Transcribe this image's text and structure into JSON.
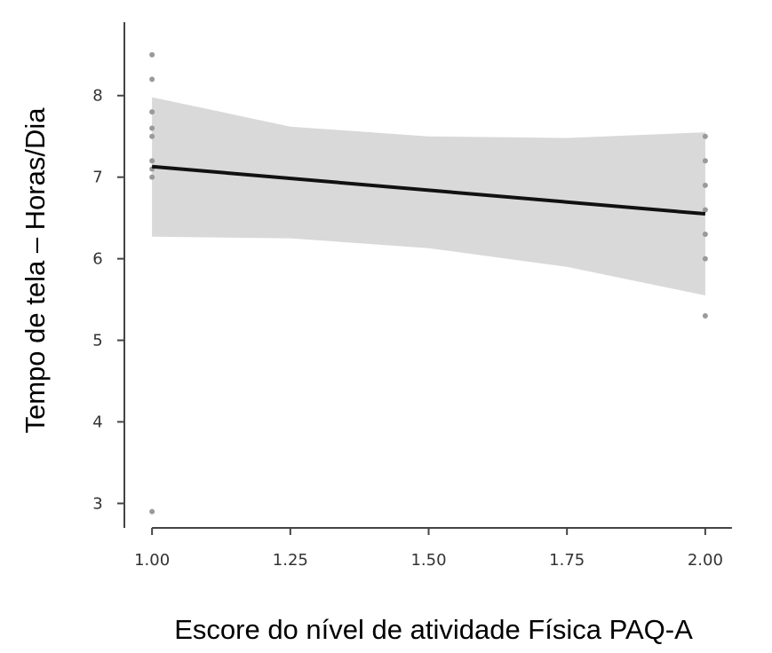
{
  "chart_data": {
    "type": "scatter",
    "title": "",
    "xlabel": "Escore do nível de atividade Física PAQ-A",
    "ylabel": "Tempo de tela – Horas/Dia",
    "xlim": [
      0.95,
      2.05
    ],
    "ylim": [
      2.7,
      8.9
    ],
    "x_ticks": [
      1.0,
      1.25,
      1.5,
      1.75,
      2.0
    ],
    "x_tick_labels": [
      "1.00",
      "1.25",
      "1.50",
      "1.75",
      "2.00"
    ],
    "y_ticks": [
      3,
      4,
      5,
      6,
      7,
      8
    ],
    "y_tick_labels": [
      "3",
      "4",
      "5",
      "6",
      "7",
      "8"
    ],
    "grid": false,
    "legend": "none",
    "points": [
      {
        "x": 1.0,
        "y": 8.5
      },
      {
        "x": 1.0,
        "y": 8.2
      },
      {
        "x": 1.0,
        "y": 7.8
      },
      {
        "x": 1.0,
        "y": 7.6
      },
      {
        "x": 1.0,
        "y": 7.5
      },
      {
        "x": 1.0,
        "y": 7.2
      },
      {
        "x": 1.0,
        "y": 7.1
      },
      {
        "x": 1.0,
        "y": 7.0
      },
      {
        "x": 1.0,
        "y": 2.9
      },
      {
        "x": 2.0,
        "y": 7.5
      },
      {
        "x": 2.0,
        "y": 7.2
      },
      {
        "x": 2.0,
        "y": 6.9
      },
      {
        "x": 2.0,
        "y": 6.6
      },
      {
        "x": 2.0,
        "y": 6.3
      },
      {
        "x": 2.0,
        "y": 6.0
      },
      {
        "x": 2.0,
        "y": 5.3
      }
    ],
    "regression_line": {
      "x": [
        1.0,
        2.0
      ],
      "y": [
        7.13,
        6.55
      ]
    },
    "confidence_band": {
      "x": [
        1.0,
        1.25,
        1.5,
        1.75,
        2.0
      ],
      "lower": [
        6.27,
        6.25,
        6.13,
        5.9,
        5.55
      ],
      "upper": [
        7.98,
        7.62,
        7.5,
        7.48,
        7.55
      ]
    },
    "colors": {
      "points": "#9a9a9a",
      "line": "#111111",
      "band": "#d9d9d9",
      "axis": "#444444"
    }
  }
}
